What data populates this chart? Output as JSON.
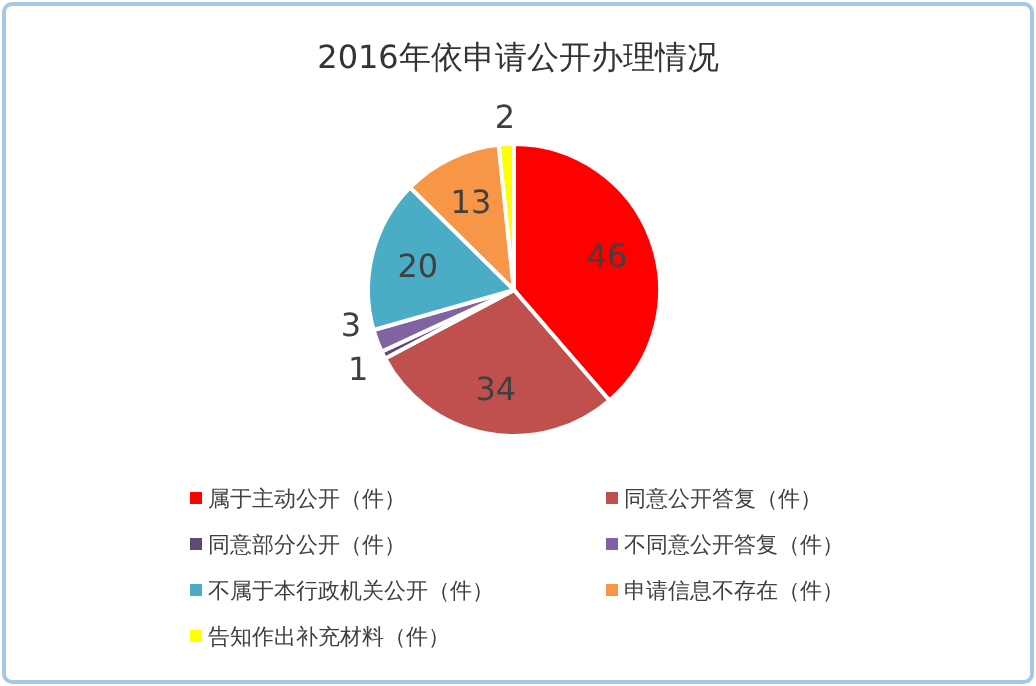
{
  "chart_data": {
    "type": "pie",
    "title": "2016年依申请公开办理情况",
    "categories": [
      "属于主动公开（件）",
      "同意公开答复（件）",
      "同意部分公开（件）",
      "不同意公开答复（件）",
      "不属于本行政机关公开（件）",
      "申请信息不存在（件）",
      "告知作出补充材料（件）"
    ],
    "values": [
      46,
      34,
      1,
      3,
      20,
      13,
      2
    ],
    "colors": [
      "#ff0000",
      "#c0504d",
      "#5f497a",
      "#8064a2",
      "#4bacc6",
      "#f79646",
      "#ffff00"
    ],
    "data_labels": true,
    "legend": "bottom"
  }
}
